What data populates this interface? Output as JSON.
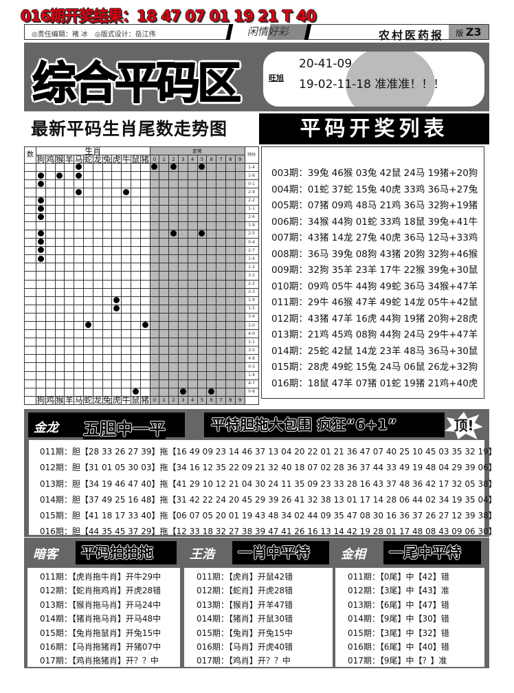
{
  "top_result": "016期开奖结果：18 47 07 01 19 21 T 40",
  "header": {
    "editor": "◎责任编辑：褚 冰　◎版式设计：岳江伟",
    "column": "闲情好彩",
    "paper": "农村医药报",
    "page_label": "版",
    "page": "Z3"
  },
  "banner": {
    "title": "综合平码区",
    "author": "旺旭",
    "line1": "20-41-09",
    "line2": "19-02-11-18 准准准！！！"
  },
  "left_title": "最新平码生肖尾数走势图",
  "right_title": "平码开奖列表",
  "trend_chart": {
    "num_label": "数",
    "zodiac_label": "生肖",
    "trend_label": "走势",
    "special_label": "特码",
    "zodiacs": [
      "狗",
      "鸡",
      "猴",
      "羊",
      "马",
      "蛇",
      "龙",
      "兔",
      "虎",
      "牛",
      "鼠",
      "猪"
    ],
    "digits": [
      "0",
      "1",
      "2",
      "3",
      "4",
      "5",
      "6",
      "7",
      "8",
      "9"
    ],
    "rows": [
      {
        "code": "1-4",
        "z": [
          "马"
        ],
        "d": [
          0,
          2,
          5
        ]
      },
      {
        "code": "1-6",
        "z": [
          "狗",
          "猴",
          "马"
        ],
        "d": []
      },
      {
        "code": "0-1",
        "z": [
          "狗"
        ],
        "d": []
      },
      {
        "code": "2-9",
        "z": [
          "马",
          "牛"
        ],
        "d": []
      },
      {
        "code": "2-2",
        "z": [
          "狗"
        ],
        "d": []
      },
      {
        "code": "1-1",
        "z": [
          "狗"
        ],
        "d": []
      },
      {
        "code": "2-6",
        "z": [
          "狗"
        ],
        "d": []
      },
      {
        "code": "1-9",
        "z": [],
        "d": []
      },
      {
        "code": "2-5",
        "z": [
          "狗"
        ],
        "d": [
          2,
          5
        ]
      },
      {
        "code": "0-4",
        "z": [
          "狗"
        ],
        "d": []
      },
      {
        "code": "2-7",
        "z": [
          "狗"
        ],
        "d": []
      },
      {
        "code": "1-4",
        "z": [
          "狗"
        ],
        "d": []
      },
      {
        "code": "1-2",
        "z": [],
        "d": []
      },
      {
        "code": "3-1",
        "z": [],
        "d": []
      },
      {
        "code": "2-2",
        "z": [],
        "d": []
      },
      {
        "code": "2-3",
        "z": [],
        "d": []
      },
      {
        "code": "1-9",
        "z": [
          "虎"
        ],
        "d": []
      },
      {
        "code": "1-5",
        "z": [
          "虎"
        ],
        "d": []
      },
      {
        "code": "3-4",
        "z": [],
        "d": []
      },
      {
        "code": "1-0",
        "z": [
          "蛇",
          "猪"
        ],
        "d": []
      },
      {
        "code": "4-0",
        "z": [],
        "d": []
      },
      {
        "code": "1-1",
        "z": [],
        "d": []
      },
      {
        "code": "3-5",
        "z": [],
        "d": []
      },
      {
        "code": "4-8",
        "z": [],
        "d": []
      },
      {
        "code": "0-3",
        "z": [],
        "d": []
      },
      {
        "code": "1-4",
        "z": [],
        "d": []
      },
      {
        "code": "4-7",
        "z": [],
        "d": []
      },
      {
        "code": "0-8",
        "z": [
          "鼠"
        ],
        "d": [
          3,
          6
        ]
      }
    ]
  },
  "draw_list": [
    "003期：39兔 46猴 03兔 42鼠 24马 19猪+20狗",
    "004期：01蛇 37蛇 15兔 40虎 33鸡 36马+27兔",
    "005期：07猪 09鸡 48马 21鸡 36马 32狗+19猪",
    "006期：34猴 44狗 01蛇 33鸡 18鼠 39兔+41牛",
    "007期：43猪 14龙 27兔 40虎 36马 12马+33鸡",
    "008期：36马 39兔 08狗 43猪 20狗 32狗+46猴",
    "009期：32狗 35羊 23羊 17牛 22猴 39兔+30鼠",
    "010期：09鸡 05牛 44狗 49蛇 36马 34猴+47羊",
    "011期：29牛 46猴 47羊 49蛇 14龙 05牛+42鼠",
    "012期：43猪 47羊 16虎 44狗 19猪 20狗+28虎",
    "013期：21鸡 45鸡 08狗 44狗 24马 29牛+47羊",
    "014期：25蛇 42鼠 14龙 23羊 48马 36马+30鼠",
    "015期：28虎 49蛇 15兔 24马 06鼠 26龙+32狗",
    "016期：18鼠 47羊 07猪 01蛇 19猪 21鸡+40虎"
  ],
  "mid_section": {
    "author": "金龙",
    "title1": "五胆中一平",
    "title2": "平特胆拖大包围 疯狂“6+1”",
    "badge": "顶!",
    "rows": [
      "011期：胆【28 33 26 27 39】拖【16 49 09 23 14 46 37 13 04 20 22 01 21 36 47 07 40 25 10 45 03 35 32 19】",
      "012期：胆【31 01 05 30 03】拖【34 16 12 35 22 09 21 32 40 18 07 02 28 36 37 44 33 49 19 48 04 29 39 06】",
      "013期：胆【34 19 46 47 40】拖【41 29 10 12 21 04 30 24 11 35 09 23 33 28 16 43 37 48 36 42 17 32 05 38】",
      "014期：胆【37 49 25 16 48】拖【31 42 22 24 20 45 29 39 26 41 32 38 13 01 17 14 28 06 44 02 34 19 35 04】",
      "015期：胆【41 18 17 33 40】拖【06 07 05 20 01 19 43 48 34 02 44 09 35 47 08 30 16 36 37 26 27 12 39 38】",
      "016期：胆【44 35 45 37 29】拖【12 33 18 32 27 38 39 47 41 26 16 13 14 42 19 28 01 17 48 08 43 09 06 30】"
    ]
  },
  "bottom_sections": [
    {
      "author": "暗客",
      "title": "平码拍拍拖",
      "rows": [
        "011期：【虎肖拖牛肖】开牛29中",
        "012期：【蛇肖拖鸡肖】开虎28错",
        "013期：【猴肖拖马肖】开马24中",
        "014期：【猪肖拖马肖】开马48中",
        "015期：【兔肖拖鼠肖】开兔15中",
        "016期：【马肖拖猪肖】开猪07中",
        "017期：【鸡肖拖猪肖】开？？中"
      ]
    },
    {
      "author": "王浩",
      "title": "一肖中平特",
      "rows": [
        "011期：【虎肖】开鼠42错",
        "012期：【蛇肖】开虎28错",
        "013期：【猴肖】开羊47错",
        "014期：【猪肖】开鼠30错",
        "015期：【兔肖】开兔15中",
        "016期：【马肖】开虎40错",
        "017期：【鸡肖】开？？中"
      ]
    },
    {
      "author": "金相",
      "title": "一尾中平特",
      "rows": [
        "011期：【0尾】中【42】错",
        "012期：【3尾】中【43】准",
        "013期：【6尾】中【47】错",
        "014期：【9尾】中【30】错",
        "015期：【3尾】中【32】错",
        "016期：【6尾】中【40】错",
        "017期：【9尾】中【？】准"
      ]
    }
  ],
  "colors": {
    "result_red": "#e00010",
    "panel_gray": "#666666",
    "trend_gray": "#b8b8b8"
  }
}
